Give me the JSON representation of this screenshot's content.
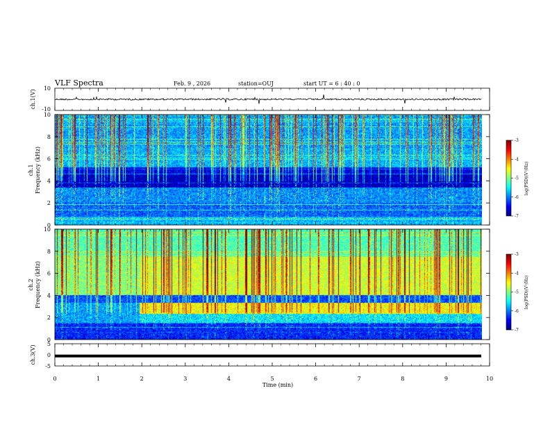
{
  "header": {
    "title": "VLF Spectra",
    "date": "Feb. 9 , 2026",
    "station": "station=OUJ",
    "start": "start  UT =  6 : 40 : 0"
  },
  "chart_data": [
    {
      "type": "line",
      "panel": "ch.1 waveform",
      "ylabel": "ch.1(V)",
      "ylim": [
        -10,
        10
      ],
      "yticks": [
        "10",
        "-10"
      ],
      "baseline": 0
    },
    {
      "type": "heatmap",
      "panel": "ch.1 spectrogram",
      "ylabel": "ch.1\nFrequency (kHz)",
      "ylim": [
        0,
        10
      ],
      "yticks": [
        "0",
        "2",
        "4",
        "6",
        "8",
        "10"
      ],
      "colorbar": {
        "label": "log(PSD)(V²/Hz)",
        "range": [
          -7,
          -3
        ],
        "ticks": [
          "-3",
          "-4",
          "-5",
          "-6",
          "-7"
        ]
      }
    },
    {
      "type": "heatmap",
      "panel": "ch.2 spectrogram",
      "ylabel": "ch.2\nFrequency (kHz)",
      "ylim": [
        0,
        10
      ],
      "yticks": [
        "0",
        "2",
        "4",
        "6",
        "8",
        "10"
      ],
      "colorbar": {
        "label": "log(PSD)(V²/Hz)",
        "range": [
          -7,
          -3
        ],
        "ticks": [
          "-3",
          "-4",
          "-5",
          "-6",
          "-7"
        ]
      }
    },
    {
      "type": "line",
      "panel": "ch.3 waveform",
      "ylabel": "ch.3(V)",
      "ylim": [
        -5,
        5
      ],
      "yticks": [
        "5",
        "0",
        "-5"
      ],
      "baseline": -0.5
    }
  ],
  "xaxis": {
    "label": "Time (min)",
    "range": [
      0,
      10
    ],
    "ticks": [
      "0",
      "1",
      "2",
      "3",
      "4",
      "5",
      "6",
      "7",
      "8",
      "9",
      "10"
    ]
  }
}
